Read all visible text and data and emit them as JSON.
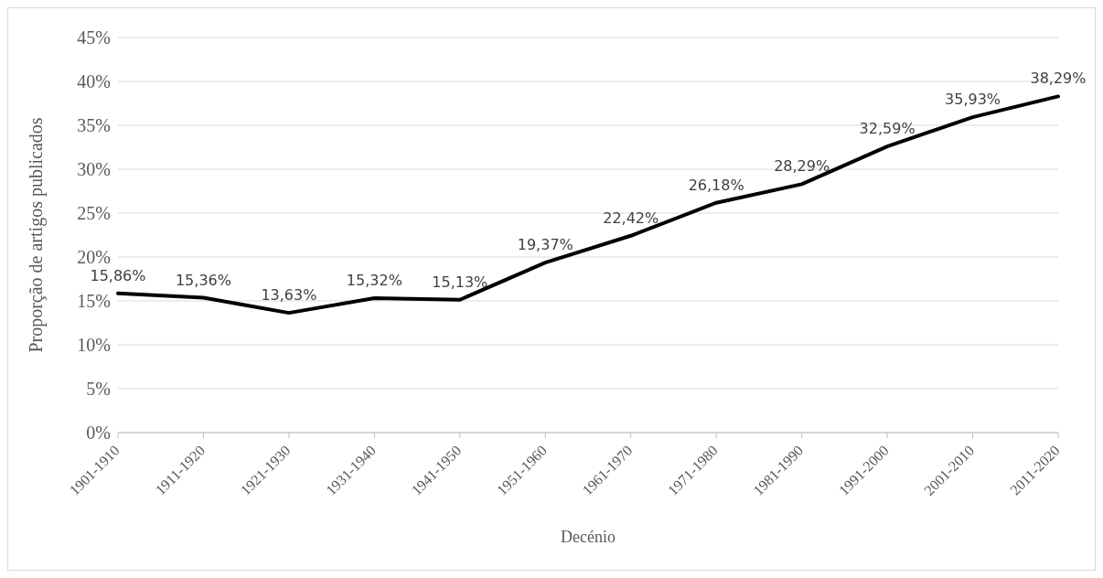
{
  "chart_data": {
    "type": "line",
    "xlabel": "Decénio",
    "ylabel": "Proporção de artigos publicados",
    "categories": [
      "1901-1910",
      "1911-1920",
      "1921-1930",
      "1931-1940",
      "1941-1950",
      "1951-1960",
      "1961-1970",
      "1971-1980",
      "1981-1990",
      "1991-2000",
      "2001-2010",
      "2011-2020"
    ],
    "series": [
      {
        "color": "#000000",
        "values": [
          15.86,
          15.36,
          13.63,
          15.32,
          15.13,
          19.37,
          22.42,
          26.18,
          28.29,
          32.59,
          35.93,
          38.29
        ],
        "value_labels": [
          "15,86%",
          "15,36%",
          "13,63%",
          "15,32%",
          "15,13%",
          "19,37%",
          "22,42%",
          "26,18%",
          "28,29%",
          "32,59%",
          "35,93%",
          "38,29%"
        ]
      }
    ],
    "ylim": [
      0,
      45
    ],
    "yticks": [
      {
        "value": 0,
        "label": "0%"
      },
      {
        "value": 5,
        "label": "5%"
      },
      {
        "value": 10,
        "label": "10%"
      },
      {
        "value": 15,
        "label": "15%"
      },
      {
        "value": 20,
        "label": "20%"
      },
      {
        "value": 25,
        "label": "25%"
      },
      {
        "value": 30,
        "label": "30%"
      },
      {
        "value": 35,
        "label": "35%"
      },
      {
        "value": 40,
        "label": "40%"
      },
      {
        "value": 45,
        "label": "45%"
      }
    ],
    "grid": "y",
    "legend": false,
    "marker": "none",
    "line_style": "solid"
  }
}
